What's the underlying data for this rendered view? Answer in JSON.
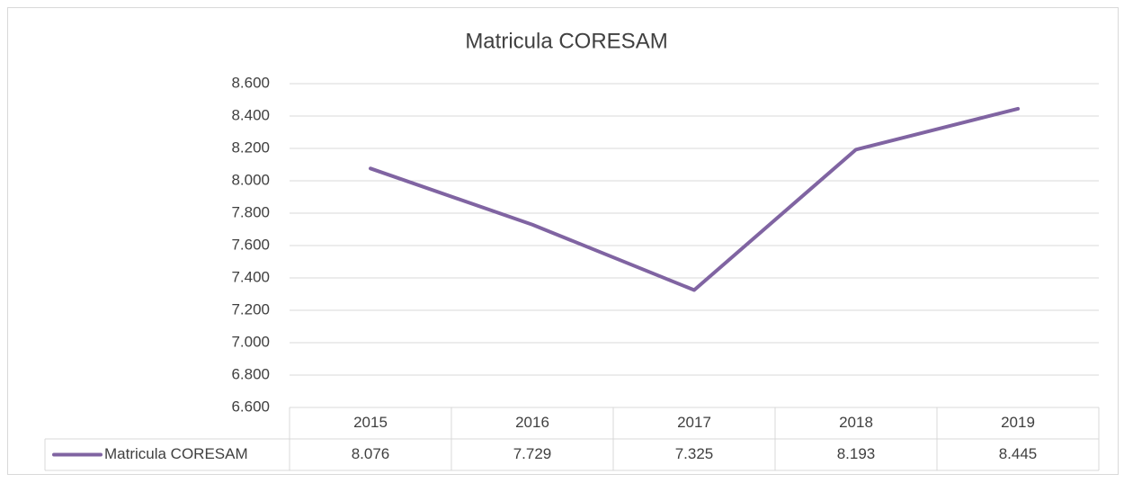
{
  "chart_data": {
    "type": "line",
    "title": "Matricula CORESAM",
    "categories": [
      "2015",
      "2016",
      "2017",
      "2018",
      "2019"
    ],
    "series": [
      {
        "name": "Matricula CORESAM",
        "color": "#8064a2",
        "values": [
          8076,
          7729,
          7325,
          8193,
          8445
        ],
        "value_labels": [
          "8.076",
          "7.729",
          "7.325",
          "8.193",
          "8.445"
        ]
      }
    ],
    "ylim": [
      6600,
      8600
    ],
    "yticks": [
      {
        "value": 6600,
        "label": "6.600"
      },
      {
        "value": 6800,
        "label": "6.800"
      },
      {
        "value": 7000,
        "label": "7.000"
      },
      {
        "value": 7200,
        "label": "7.200"
      },
      {
        "value": 7400,
        "label": "7.400"
      },
      {
        "value": 7600,
        "label": "7.600"
      },
      {
        "value": 7800,
        "label": "7.800"
      },
      {
        "value": 8000,
        "label": "8.000"
      },
      {
        "value": 8200,
        "label": "8.200"
      },
      {
        "value": 8400,
        "label": "8.400"
      },
      {
        "value": 8600,
        "label": "8.600"
      }
    ],
    "grid": true
  }
}
